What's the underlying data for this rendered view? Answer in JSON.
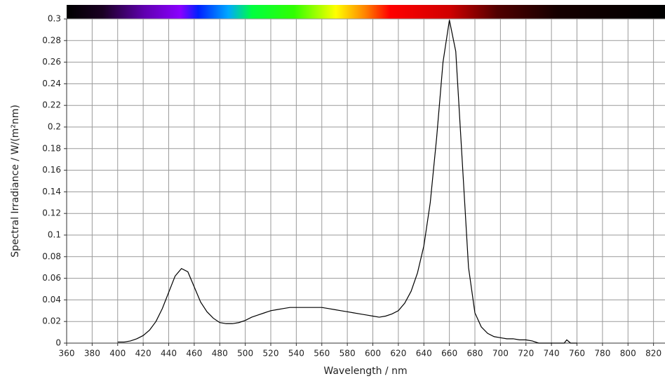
{
  "chart_data": {
    "type": "line",
    "x_label": "Wavelength / nm",
    "y_label": "Spectral Irradiance / W/(m²nm)",
    "xlim": [
      360,
      829
    ],
    "ylim": [
      0,
      0.3
    ],
    "xticks": [
      360,
      380,
      400,
      420,
      440,
      460,
      480,
      500,
      520,
      540,
      560,
      580,
      600,
      620,
      640,
      660,
      680,
      700,
      720,
      740,
      760,
      780,
      800,
      820
    ],
    "yticks": [
      0,
      0.02,
      0.04,
      0.06,
      0.08,
      0.1,
      0.12,
      0.14,
      0.16,
      0.18,
      0.2,
      0.22,
      0.24,
      0.26,
      0.28,
      0.3
    ],
    "grid": true,
    "color": "#000000",
    "x": [
      400,
      405,
      410,
      415,
      420,
      425,
      430,
      435,
      440,
      445,
      450,
      455,
      460,
      465,
      470,
      475,
      480,
      485,
      490,
      495,
      500,
      505,
      510,
      515,
      520,
      525,
      530,
      535,
      540,
      545,
      550,
      555,
      560,
      565,
      570,
      575,
      580,
      585,
      590,
      595,
      600,
      605,
      610,
      615,
      620,
      625,
      630,
      635,
      640,
      645,
      650,
      655,
      660,
      665,
      670,
      675,
      680,
      685,
      690,
      695,
      700,
      705,
      710,
      715,
      720,
      725,
      730,
      740,
      750,
      752,
      755,
      760
    ],
    "values": [
      0.001,
      0.001,
      0.002,
      0.004,
      0.007,
      0.012,
      0.02,
      0.032,
      0.047,
      0.062,
      0.069,
      0.066,
      0.052,
      0.038,
      0.029,
      0.023,
      0.019,
      0.018,
      0.018,
      0.019,
      0.021,
      0.024,
      0.026,
      0.028,
      0.03,
      0.031,
      0.032,
      0.033,
      0.033,
      0.033,
      0.033,
      0.033,
      0.033,
      0.032,
      0.031,
      0.03,
      0.029,
      0.028,
      0.027,
      0.026,
      0.025,
      0.024,
      0.025,
      0.027,
      0.03,
      0.037,
      0.048,
      0.065,
      0.09,
      0.13,
      0.19,
      0.26,
      0.299,
      0.27,
      0.17,
      0.07,
      0.028,
      0.015,
      0.009,
      0.006,
      0.005,
      0.004,
      0.004,
      0.003,
      0.003,
      0.002,
      0,
      0,
      0,
      0.003,
      0,
      0
    ]
  }
}
